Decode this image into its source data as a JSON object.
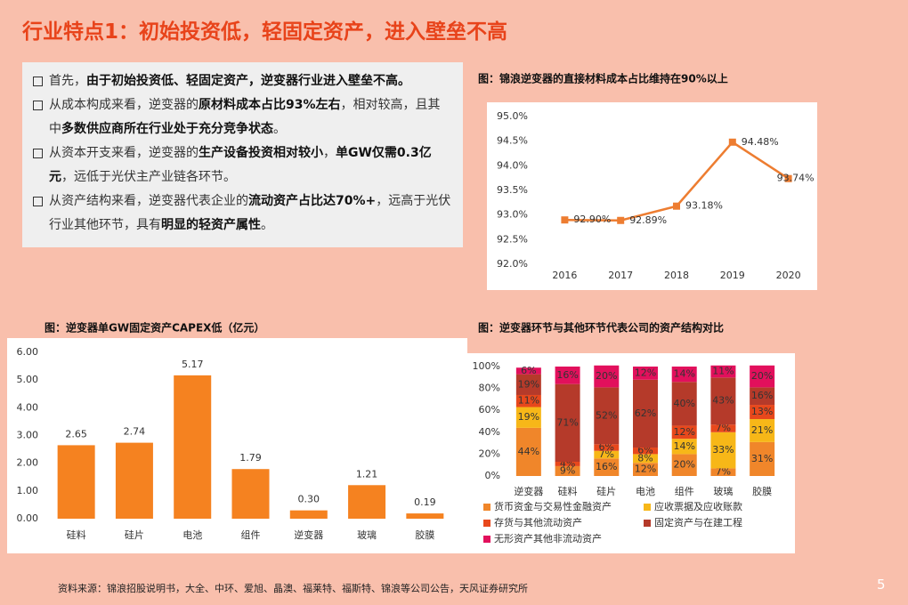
{
  "title": "行业特点1：初始投资低，轻固定资产，进入壁垒不高",
  "bullets": [
    [
      {
        "text": "首先，",
        "bold": false
      },
      {
        "text": "由于初始投资低、轻固定资产，逆变器行业进入壁垒不高。",
        "bold": true
      }
    ],
    [
      {
        "text": "从成本构成来看，逆变器的",
        "bold": false
      },
      {
        "text": "原材料成本占比93%左右",
        "bold": true
      },
      {
        "text": "，相对较高，且其中",
        "bold": false
      },
      {
        "text": "多数供应商所在行业处于充分竞争状态",
        "bold": true
      },
      {
        "text": "。",
        "bold": false
      }
    ],
    [
      {
        "text": "从资本开支来看，逆变器的",
        "bold": false
      },
      {
        "text": "生产设备投资相对较小",
        "bold": true
      },
      {
        "text": "，",
        "bold": false
      },
      {
        "text": "单GW仅需0.3亿元",
        "bold": true
      },
      {
        "text": "，远低于光伏主产业链各环节。",
        "bold": false
      }
    ],
    [
      {
        "text": "从资产结构来看，逆变器代表企业的",
        "bold": false
      },
      {
        "text": "流动资产占比达70%+",
        "bold": true
      },
      {
        "text": "，远高于光伏行业其他环节，具有",
        "bold": false
      },
      {
        "text": "明显的轻资产属性",
        "bold": true
      },
      {
        "text": "。",
        "bold": false
      }
    ]
  ],
  "chart_data": [
    {
      "type": "line",
      "title": "图：锦浪逆变器的直接材料成本占比维持在90%以上",
      "categories": [
        "2016",
        "2017",
        "2018",
        "2019",
        "2020"
      ],
      "values": [
        92.9,
        92.89,
        93.18,
        94.48,
        93.74
      ],
      "value_labels": [
        "92.90%",
        "92.89%",
        "93.18%",
        "94.48%",
        "93.74%"
      ],
      "color": "#ed7d31",
      "ylim": [
        92,
        95
      ],
      "yticks": [
        {
          "value": 92,
          "label": "92.0%"
        },
        {
          "value": 92.5,
          "label": "92.5%"
        },
        {
          "value": 93,
          "label": "93.0%"
        },
        {
          "value": 93.5,
          "label": "93.5%"
        },
        {
          "value": 94,
          "label": "94.0%"
        },
        {
          "value": 94.5,
          "label": "94.5%"
        },
        {
          "value": 95,
          "label": "95.0%"
        }
      ]
    },
    {
      "type": "bar",
      "title": "图：逆变器单GW固定资产CAPEX低（亿元）",
      "categories": [
        "硅料",
        "硅片",
        "电池",
        "组件",
        "逆变器",
        "玻璃",
        "胶膜"
      ],
      "values": [
        2.65,
        2.74,
        5.17,
        1.79,
        0.3,
        1.21,
        0.19
      ],
      "value_labels": [
        "2.65",
        "2.74",
        "5.17",
        "1.79",
        "0.30",
        "1.21",
        "0.19"
      ],
      "color": "#f58220",
      "ylim": [
        0,
        6
      ],
      "yticks": [
        {
          "value": 0,
          "label": "0.00"
        },
        {
          "value": 1,
          "label": "1.00"
        },
        {
          "value": 2,
          "label": "2.00"
        },
        {
          "value": 3,
          "label": "3.00"
        },
        {
          "value": 4,
          "label": "4.00"
        },
        {
          "value": 5,
          "label": "5.00"
        },
        {
          "value": 6,
          "label": "6.00"
        }
      ]
    },
    {
      "type": "stacked_bar",
      "title": "图：逆变器环节与其他环节代表公司的资产结构对比",
      "categories": [
        "逆变器",
        "硅料",
        "硅片",
        "电池",
        "组件",
        "玻璃",
        "胶膜"
      ],
      "series": [
        {
          "name": "货币资金与交易性金融资产",
          "color": "#f0862a",
          "values": [
            44,
            9,
            16,
            12,
            20,
            7,
            31
          ],
          "value_labels": [
            "44%",
            "9%",
            "16%",
            "12%",
            "20%",
            "7%",
            "31%"
          ]
        },
        {
          "name": "应收票据及应收账款",
          "color": "#f7b718",
          "values": [
            19,
            0,
            7,
            8,
            14,
            33,
            21
          ],
          "value_labels": [
            "19%",
            null,
            "7%",
            "8%",
            "14%",
            "33%",
            "21%"
          ]
        },
        {
          "name": "存货与其他流动资产",
          "color": "#e8481c",
          "values": [
            11,
            4,
            6,
            6,
            12,
            7,
            13
          ],
          "value_labels": [
            "11%",
            "4%",
            "6%",
            "6%",
            "12%",
            "7%",
            "13%"
          ]
        },
        {
          "name": "固定资产与在建工程",
          "color": "#b53a2a",
          "values": [
            19,
            71,
            52,
            62,
            40,
            43,
            16
          ],
          "value_labels": [
            "19%",
            "71%",
            "52%",
            "62%",
            "40%",
            "43%",
            "16%"
          ]
        },
        {
          "name": "无形资产其他非流动资产",
          "color": "#e2105c",
          "values": [
            6,
            16,
            20,
            12,
            14,
            11,
            20
          ],
          "value_labels": [
            "6%",
            "16%",
            "20%",
            "12%",
            "14%",
            "11%",
            "20%"
          ]
        }
      ],
      "ylim": [
        0,
        100
      ],
      "yticks": [
        {
          "value": 0,
          "label": "0%"
        },
        {
          "value": 20,
          "label": "20%"
        },
        {
          "value": 40,
          "label": "40%"
        },
        {
          "value": 60,
          "label": "60%"
        },
        {
          "value": 80,
          "label": "80%"
        },
        {
          "value": 100,
          "label": "100%"
        }
      ],
      "legend": "bottom"
    }
  ],
  "source": "资料来源：锦浪招股说明书，大全、中环、爱旭、晶澳、福莱特、福斯特、锦浪等公司公告，天风证券研究所",
  "page_number": "5"
}
